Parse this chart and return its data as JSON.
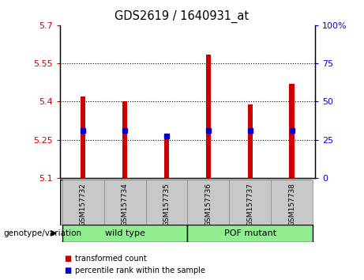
{
  "title": "GDS2619 / 1640931_at",
  "samples": [
    "GSM157732",
    "GSM157734",
    "GSM157735",
    "GSM157736",
    "GSM157737",
    "GSM157738"
  ],
  "transformed_counts": [
    5.42,
    5.4,
    5.27,
    5.585,
    5.39,
    5.47
  ],
  "percentile_values": [
    5.285,
    5.285,
    5.265,
    5.285,
    5.285,
    5.285
  ],
  "ylim_left": [
    5.1,
    5.7
  ],
  "ylim_right": [
    0,
    100
  ],
  "yticks_left": [
    5.1,
    5.25,
    5.4,
    5.55,
    5.7
  ],
  "yticks_right": [
    0,
    25,
    50,
    75,
    100
  ],
  "ytick_labels_left": [
    "5.1",
    "5.25",
    "5.4",
    "5.55",
    "5.7"
  ],
  "ytick_labels_right": [
    "0",
    "25",
    "50",
    "75",
    "100%"
  ],
  "bar_color": "#cc0000",
  "blue_marker_color": "#0000cc",
  "group_label_color": "#c8f0c8",
  "xlabel_area_color": "#c8c8c8",
  "wild_type_indices": [
    0,
    1,
    2
  ],
  "pof_mutant_indices": [
    3,
    4,
    5
  ],
  "wild_type_label": "wild type",
  "pof_mutant_label": "POF mutant",
  "genotype_label": "genotype/variation",
  "legend_items": [
    {
      "color": "#cc0000",
      "label": "transformed count"
    },
    {
      "color": "#0000cc",
      "label": "percentile rank within the sample"
    }
  ]
}
